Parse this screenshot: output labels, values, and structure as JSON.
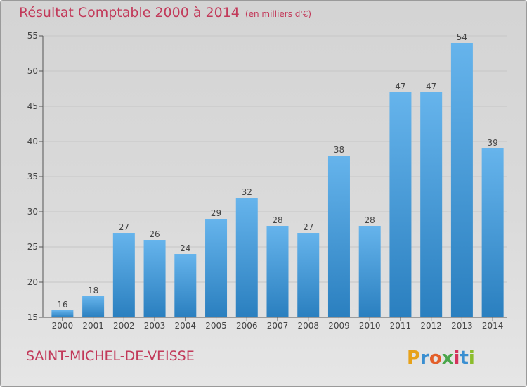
{
  "header": {
    "title": "Résultat Comptable 2000 à 2014",
    "subtitle": "(en milliers d'€)"
  },
  "footer": {
    "commune": "SAINT-MICHEL-DE-VEISSE",
    "logo_text": "Proxiti"
  },
  "colors": {
    "title": "#c23a5a",
    "bar_top": "#66b4ec",
    "bar_bottom": "#2a7fbf",
    "background": "#d8d8d8"
  },
  "chart_data": {
    "type": "bar",
    "categories": [
      "2000",
      "2001",
      "2002",
      "2003",
      "2004",
      "2005",
      "2006",
      "2007",
      "2008",
      "2009",
      "2010",
      "2011",
      "2012",
      "2013",
      "2014"
    ],
    "values": [
      16,
      18,
      27,
      26,
      24,
      29,
      32,
      28,
      27,
      38,
      28,
      47,
      47,
      54,
      39
    ],
    "data_labels": [
      "16",
      "18",
      "27",
      "26",
      "24",
      "29",
      "32",
      "28",
      "27",
      "38",
      "28",
      "47",
      "47",
      "54",
      "39"
    ],
    "title": "Résultat Comptable 2000 à 2014",
    "ylim": [
      15,
      55
    ],
    "yticks": [
      15,
      20,
      25,
      30,
      35,
      40,
      45,
      50,
      55
    ],
    "grid": true
  }
}
